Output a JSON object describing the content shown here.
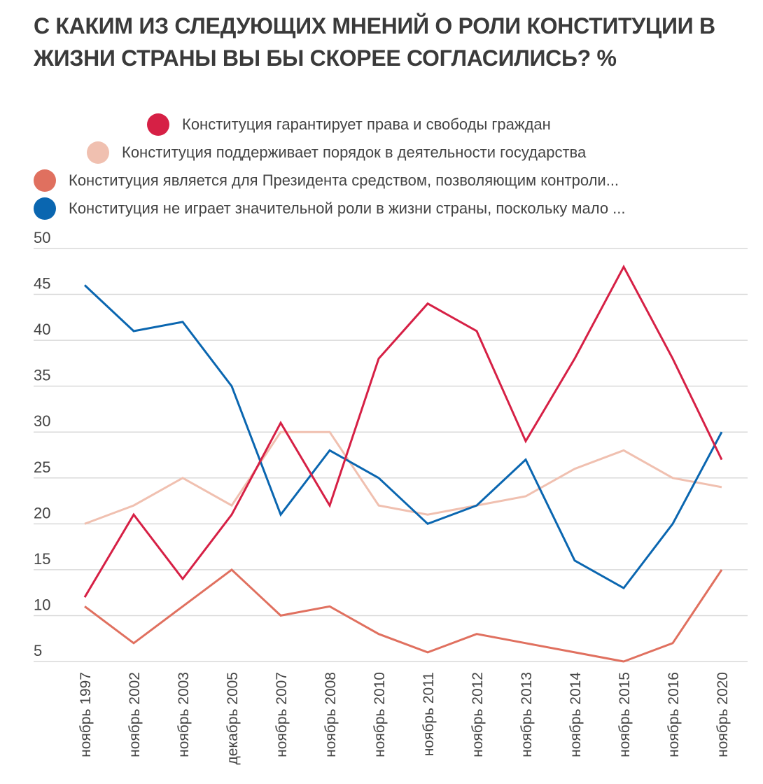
{
  "title": "С КАКИМ ИЗ СЛЕДУЮЩИХ МНЕНИЙ О РОЛИ КОНСТИТУЦИИ В ЖИЗНИ СТРАНЫ ВЫ БЫ СКОРЕЕ СОГЛАСИЛИСЬ? %",
  "chart_data": {
    "type": "line",
    "title": "С КАКИМ ИЗ СЛЕДУЮЩИХ МНЕНИЙ О РОЛИ КОНСТИТУЦИИ В ЖИЗНИ СТРАНЫ ВЫ БЫ СКОРЕЕ СОГЛАСИЛИСЬ? %",
    "categories": [
      "ноябрь 1997",
      "ноябрь 2002",
      "ноябрь 2003",
      "декабрь 2005",
      "ноябрь 2007",
      "ноябрь 2008",
      "ноябрь 2010",
      "ноябрь 2011",
      "ноябрь 2012",
      "ноябрь 2013",
      "ноябрь 2014",
      "ноябрь 2015",
      "ноябрь 2016",
      "ноябрь 2020"
    ],
    "ylim": [
      5,
      50
    ],
    "yticks": [
      5,
      10,
      15,
      20,
      25,
      30,
      35,
      40,
      45,
      50
    ],
    "grid": true,
    "legend_position": "top",
    "series": [
      {
        "name": "Конституция гарантирует права и свободы граждан",
        "color": "#d62045",
        "values": [
          12,
          21,
          14,
          21,
          31,
          22,
          38,
          44,
          41,
          29,
          38,
          48,
          38,
          27
        ]
      },
      {
        "name": "Конституция поддерживает порядок в деятельности государства",
        "color": "#f0c0b0",
        "values": [
          20,
          22,
          25,
          22,
          30,
          30,
          22,
          21,
          22,
          23,
          26,
          28,
          25,
          24
        ]
      },
      {
        "name": "Конституция является для Президента средством, позволяющим контроли...",
        "color": "#e0705f",
        "values": [
          11,
          7,
          11,
          15,
          10,
          11,
          8,
          6,
          8,
          7,
          6,
          5,
          7,
          15
        ]
      },
      {
        "name": "Конституция не играет значительной роли в жизни страны, поскольку мало ...",
        "color": "#0a66b0",
        "values": [
          46,
          41,
          42,
          35,
          21,
          28,
          25,
          20,
          22,
          27,
          16,
          13,
          20,
          30
        ]
      }
    ]
  }
}
